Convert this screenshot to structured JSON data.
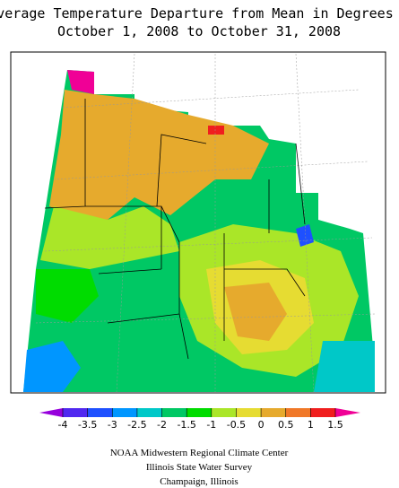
{
  "header": {
    "title": "Average Temperature Departure from Mean in Degrees F",
    "subtitle": "October 1, 2008 to October 31, 2008"
  },
  "legend": {
    "ticks": [
      -4,
      -3.5,
      -3,
      -2.5,
      -2,
      -1.5,
      -1,
      -0.5,
      0,
      0.5,
      1,
      1.5
    ],
    "colors": [
      "#9600dc",
      "#5028f0",
      "#1e50ff",
      "#0096ff",
      "#00c8c8",
      "#00c864",
      "#00dc00",
      "#aae628",
      "#e6dc32",
      "#e6aa2d",
      "#f07828",
      "#f01e1e",
      "#f00096"
    ]
  },
  "footer": {
    "lines": [
      "NOAA Midwestern Regional Climate Center",
      "Illinois State Water Survey",
      "Champaign, Illinois"
    ]
  }
}
